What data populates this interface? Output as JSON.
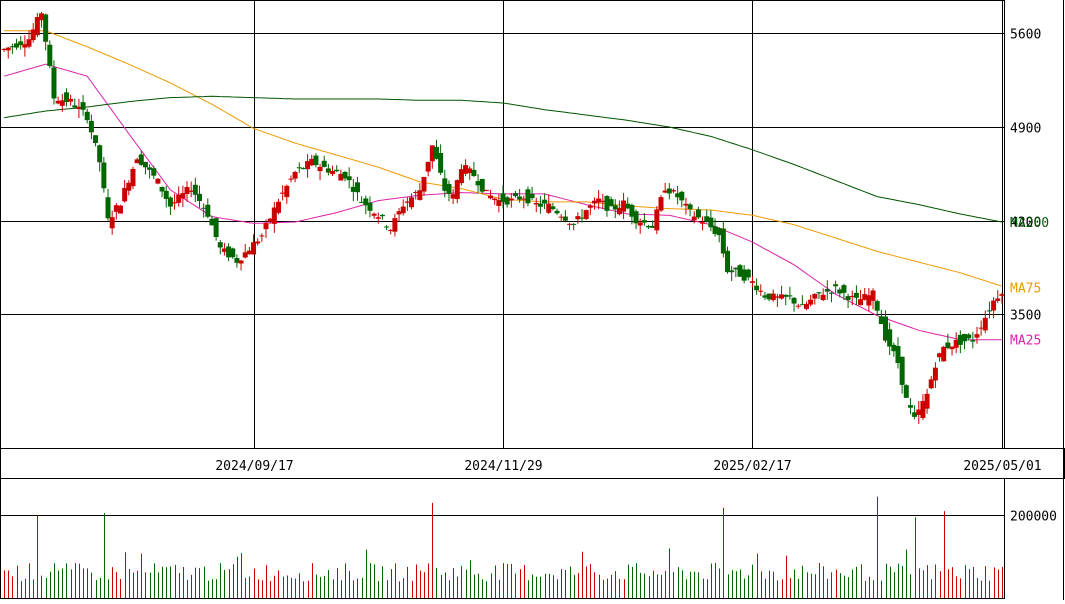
{
  "chart_data": {
    "type": "candlestick",
    "title": "",
    "xlabel": "",
    "ylabel": "",
    "price_axis": {
      "ylim": [
        2500,
        5850
      ],
      "ticks": [
        "5600",
        "4900",
        "4200",
        "3500"
      ],
      "tick_values": [
        5600,
        4900,
        4200,
        3500
      ]
    },
    "volume_axis": {
      "ylim": [
        0,
        290000
      ],
      "ticks": [
        "200000"
      ],
      "tick_values": [
        200000
      ]
    },
    "date_labels": [
      "2024/09/17",
      "2024/11/29",
      "2025/02/17",
      "2025/05/01"
    ],
    "date_label_index": [
      60,
      120,
      180,
      240
    ],
    "grid": true,
    "colors": {
      "up": "#cc0000",
      "down": "#006600",
      "ma25": "#dd22aa",
      "ma75": "#ee9900",
      "ma200": "#005500",
      "grid": "#000000"
    },
    "moving_averages": [
      {
        "name": "MA25",
        "color": "#dd22aa",
        "end_value": 3310
      },
      {
        "name": "MA75",
        "color": "#ee9900",
        "end_value": 3700
      },
      {
        "name": "MA200",
        "color": "#005500",
        "end_value": 4190
      }
    ],
    "moving_average_path_points": {
      "ma25": [
        [
          0,
          5280
        ],
        [
          10,
          5370
        ],
        [
          20,
          5280
        ],
        [
          30,
          4850
        ],
        [
          40,
          4430
        ],
        [
          50,
          4230
        ],
        [
          60,
          4180
        ],
        [
          70,
          4190
        ],
        [
          80,
          4260
        ],
        [
          90,
          4350
        ],
        [
          100,
          4390
        ],
        [
          110,
          4410
        ],
        [
          120,
          4400
        ],
        [
          130,
          4400
        ],
        [
          140,
          4320
        ],
        [
          150,
          4250
        ],
        [
          160,
          4240
        ],
        [
          170,
          4170
        ],
        [
          180,
          4040
        ],
        [
          190,
          3870
        ],
        [
          200,
          3650
        ],
        [
          210,
          3490
        ],
        [
          220,
          3380
        ],
        [
          230,
          3310
        ],
        [
          240,
          3310
        ]
      ],
      "ma75": [
        [
          0,
          5620
        ],
        [
          10,
          5620
        ],
        [
          20,
          5500
        ],
        [
          30,
          5370
        ],
        [
          40,
          5230
        ],
        [
          50,
          5070
        ],
        [
          60,
          4890
        ],
        [
          70,
          4780
        ],
        [
          80,
          4690
        ],
        [
          90,
          4600
        ],
        [
          100,
          4490
        ],
        [
          110,
          4440
        ],
        [
          120,
          4360
        ],
        [
          130,
          4340
        ],
        [
          140,
          4340
        ],
        [
          150,
          4310
        ],
        [
          160,
          4290
        ],
        [
          170,
          4280
        ],
        [
          180,
          4240
        ],
        [
          190,
          4170
        ],
        [
          200,
          4070
        ],
        [
          210,
          3970
        ],
        [
          220,
          3890
        ],
        [
          230,
          3810
        ],
        [
          240,
          3710
        ]
      ],
      "ma200": [
        [
          0,
          4970
        ],
        [
          10,
          5020
        ],
        [
          20,
          5050
        ],
        [
          30,
          5090
        ],
        [
          40,
          5120
        ],
        [
          50,
          5130
        ],
        [
          60,
          5120
        ],
        [
          70,
          5110
        ],
        [
          80,
          5110
        ],
        [
          90,
          5110
        ],
        [
          100,
          5100
        ],
        [
          110,
          5100
        ],
        [
          120,
          5080
        ],
        [
          130,
          5030
        ],
        [
          140,
          4990
        ],
        [
          150,
          4950
        ],
        [
          160,
          4900
        ],
        [
          170,
          4830
        ],
        [
          180,
          4730
        ],
        [
          190,
          4620
        ],
        [
          200,
          4500
        ],
        [
          210,
          4380
        ],
        [
          220,
          4320
        ],
        [
          230,
          4250
        ],
        [
          240,
          4190
        ]
      ]
    },
    "ohlc_anchor_closes": [
      [
        0,
        5480
      ],
      [
        6,
        5560
      ],
      [
        9,
        5760
      ],
      [
        12,
        5120
      ],
      [
        16,
        5090
      ],
      [
        20,
        4980
      ],
      [
        23,
        4640
      ],
      [
        25,
        4200
      ],
      [
        28,
        4340
      ],
      [
        32,
        4680
      ],
      [
        37,
        4490
      ],
      [
        40,
        4310
      ],
      [
        45,
        4450
      ],
      [
        49,
        4250
      ],
      [
        52,
        3990
      ],
      [
        56,
        3900
      ],
      [
        58,
        3960
      ],
      [
        62,
        4090
      ],
      [
        66,
        4350
      ],
      [
        70,
        4560
      ],
      [
        74,
        4640
      ],
      [
        78,
        4580
      ],
      [
        82,
        4540
      ],
      [
        86,
        4350
      ],
      [
        90,
        4240
      ],
      [
        93,
        4140
      ],
      [
        96,
        4320
      ],
      [
        100,
        4430
      ],
      [
        103,
        4760
      ],
      [
        106,
        4430
      ],
      [
        108,
        4380
      ],
      [
        110,
        4610
      ],
      [
        113,
        4540
      ],
      [
        116,
        4400
      ],
      [
        119,
        4350
      ],
      [
        122,
        4350
      ],
      [
        125,
        4380
      ],
      [
        128,
        4320
      ],
      [
        131,
        4310
      ],
      [
        134,
        4250
      ],
      [
        137,
        4170
      ],
      [
        140,
        4280
      ],
      [
        143,
        4350
      ],
      [
        146,
        4280
      ],
      [
        149,
        4330
      ],
      [
        152,
        4210
      ],
      [
        156,
        4160
      ],
      [
        159,
        4450
      ],
      [
        162,
        4380
      ],
      [
        165,
        4260
      ],
      [
        169,
        4180
      ],
      [
        172,
        4090
      ],
      [
        174,
        3830
      ],
      [
        177,
        3800
      ],
      [
        180,
        3740
      ],
      [
        183,
        3640
      ],
      [
        186,
        3620
      ],
      [
        189,
        3620
      ],
      [
        192,
        3550
      ],
      [
        196,
        3650
      ],
      [
        200,
        3690
      ],
      [
        205,
        3600
      ],
      [
        209,
        3650
      ],
      [
        212,
        3330
      ],
      [
        215,
        3140
      ],
      [
        217,
        2860
      ],
      [
        219,
        2710
      ],
      [
        222,
        2900
      ],
      [
        224,
        3130
      ],
      [
        226,
        3250
      ],
      [
        229,
        3290
      ],
      [
        233,
        3310
      ],
      [
        236,
        3480
      ],
      [
        238,
        3600
      ],
      [
        240,
        3680
      ]
    ],
    "volume_series": [
      {
        "name": "",
        "color_up": "#cc0000",
        "color_down": "#006600"
      }
    ],
    "volume_spikes": [
      [
        8,
        200000
      ],
      [
        24,
        205000
      ],
      [
        103,
        230000
      ],
      [
        173,
        218000
      ],
      [
        210,
        245000
      ],
      [
        219,
        195000
      ],
      [
        226,
        210000
      ]
    ],
    "bars_count": 241
  }
}
